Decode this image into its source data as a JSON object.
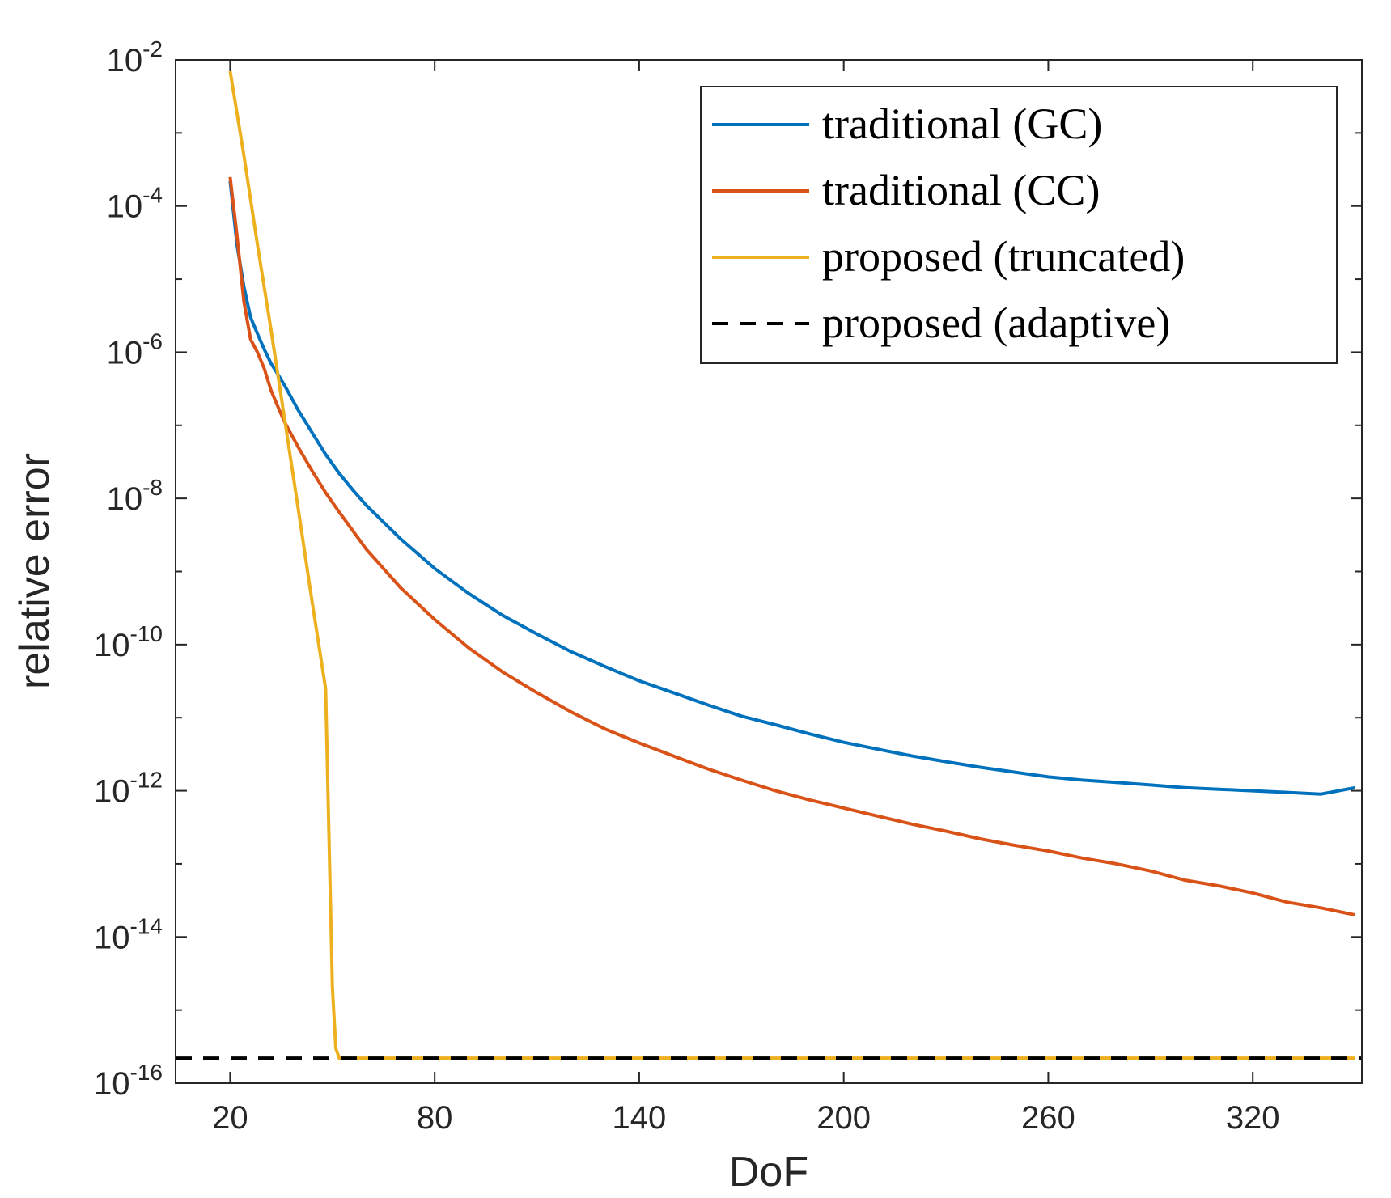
{
  "chart_data": {
    "type": "line",
    "title": "",
    "xlabel": "DoF",
    "ylabel": "relative error",
    "xlim": [
      4,
      352
    ],
    "ylim": [
      1e-16,
      0.01
    ],
    "yscale": "log",
    "xticks": [
      20,
      80,
      140,
      200,
      260,
      320
    ],
    "xtick_labels": [
      "20",
      "80",
      "140",
      "200",
      "260",
      "320"
    ],
    "yticks": [
      1e-16,
      1e-14,
      1e-12,
      1e-10,
      1e-08,
      1e-06,
      0.0001,
      0.01
    ],
    "ytick_labels": [
      {
        "base": "10",
        "exp": "-16"
      },
      {
        "base": "10",
        "exp": "-14"
      },
      {
        "base": "10",
        "exp": "-12"
      },
      {
        "base": "10",
        "exp": "-10"
      },
      {
        "base": "10",
        "exp": "-8"
      },
      {
        "base": "10",
        "exp": "-6"
      },
      {
        "base": "10",
        "exp": "-4"
      },
      {
        "base": "10",
        "exp": "-2"
      }
    ],
    "grid": false,
    "legend_position": "top-right",
    "series": [
      {
        "name": "traditional (GC)",
        "color": "#0072BD",
        "style": "solid",
        "x": [
          20,
          22,
          24,
          26,
          28,
          30,
          32,
          34,
          36,
          40,
          44,
          48,
          52,
          56,
          60,
          70,
          80,
          90,
          100,
          110,
          120,
          130,
          140,
          150,
          160,
          170,
          180,
          190,
          200,
          210,
          220,
          230,
          240,
          250,
          260,
          270,
          280,
          290,
          300,
          310,
          320,
          330,
          340,
          350
        ],
        "y": [
          0.00022,
          3e-05,
          8e-06,
          3e-06,
          1.8e-06,
          1.1e-06,
          7e-07,
          5e-07,
          3.5e-07,
          1.6e-07,
          8e-08,
          4e-08,
          2.2e-08,
          1.3e-08,
          8e-09,
          2.8e-09,
          1.1e-09,
          5e-10,
          2.5e-10,
          1.4e-10,
          8e-11,
          5e-11,
          3.2e-11,
          2.2e-11,
          1.5e-11,
          1.05e-11,
          8e-12,
          6e-12,
          4.6e-12,
          3.7e-12,
          3e-12,
          2.5e-12,
          2.1e-12,
          1.8e-12,
          1.55e-12,
          1.4e-12,
          1.3e-12,
          1.2e-12,
          1.1e-12,
          1.05e-12,
          1e-12,
          9.5e-13,
          9e-13,
          1.1e-12
        ]
      },
      {
        "name": "traditional (CC)",
        "color": "#D95319",
        "style": "solid",
        "x": [
          20,
          22,
          24,
          26,
          28,
          30,
          32,
          34,
          36,
          40,
          44,
          48,
          52,
          56,
          60,
          70,
          80,
          90,
          100,
          110,
          120,
          130,
          140,
          150,
          160,
          170,
          180,
          190,
          200,
          210,
          220,
          230,
          240,
          250,
          260,
          270,
          280,
          290,
          300,
          310,
          320,
          330,
          340,
          350
        ],
        "y": [
          0.00025,
          4e-05,
          5e-06,
          1.5e-06,
          1e-06,
          6e-07,
          3e-07,
          1.8e-07,
          1.1e-07,
          5e-08,
          2.4e-08,
          1.2e-08,
          6.5e-09,
          3.6e-09,
          2e-09,
          6e-10,
          2.2e-10,
          9e-11,
          4.2e-11,
          2.2e-11,
          1.2e-11,
          7e-12,
          4.5e-12,
          3e-12,
          2e-12,
          1.4e-12,
          1e-12,
          7.5e-13,
          5.8e-13,
          4.5e-13,
          3.5e-13,
          2.8e-13,
          2.2e-13,
          1.8e-13,
          1.5e-13,
          1.2e-13,
          1e-13,
          8e-14,
          6e-14,
          5e-14,
          4e-14,
          3e-14,
          2.5e-14,
          2e-14
        ]
      },
      {
        "name": "proposed (truncated)",
        "color": "#EDB120",
        "style": "solid",
        "x": [
          20,
          24,
          28,
          32,
          36,
          40,
          44,
          48,
          50,
          51,
          52,
          53,
          54,
          100,
          150,
          200,
          250,
          300,
          350
        ],
        "y": [
          0.007,
          0.0005,
          3e-05,
          2e-06,
          1.2e-07,
          7e-09,
          4e-10,
          2.5e-11,
          2e-15,
          3e-16,
          2.2e-16,
          2.2e-16,
          2.2e-16,
          2.2e-16,
          2.2e-16,
          2.2e-16,
          2.2e-16,
          2.2e-16,
          2.2e-16
        ]
      },
      {
        "name": "proposed (adaptive)",
        "color": "#000000",
        "style": "dashed",
        "x": [
          4,
          352
        ],
        "y": [
          2.2e-16,
          2.2e-16
        ]
      }
    ]
  }
}
